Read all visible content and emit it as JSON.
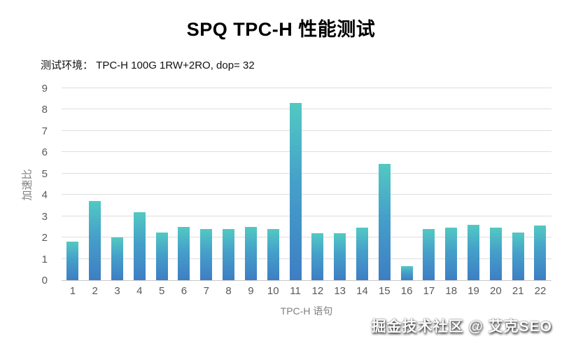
{
  "title": "SPQ TPC-H 性能测试",
  "subtitle": "测试环境： TPC-H 100G 1RW+2RO, dop= 32",
  "watermark": "掘金技术社区 @ 艾克SEO",
  "colors": {
    "bar_top": "#52c9c3",
    "bar_bottom": "#3e7ec4",
    "gridline": "#dedede",
    "tick_label": "#595959",
    "axis_title": "#7f7f7f"
  },
  "chart_data": {
    "type": "bar",
    "title": "SPQ TPC-H 性能测试",
    "subtitle": "测试环境： TPC-H 100G 1RW+2RO, dop= 32",
    "categories": [
      "1",
      "2",
      "3",
      "4",
      "5",
      "6",
      "7",
      "8",
      "9",
      "10",
      "11",
      "12",
      "13",
      "14",
      "15",
      "16",
      "17",
      "18",
      "19",
      "20",
      "21",
      "22"
    ],
    "values": [
      1.8,
      3.7,
      2.0,
      3.2,
      2.25,
      2.5,
      2.4,
      2.4,
      2.5,
      2.4,
      8.3,
      2.2,
      2.2,
      2.45,
      5.45,
      0.65,
      2.4,
      2.45,
      2.6,
      2.45,
      2.25,
      2.55
    ],
    "xlabel": "TPC-H 语句",
    "ylabel": "加速比",
    "ylim": [
      0,
      9
    ],
    "yticks": [
      0,
      1,
      2,
      3,
      4,
      5,
      6,
      7,
      8,
      9
    ],
    "grid": true,
    "legend": "none"
  }
}
